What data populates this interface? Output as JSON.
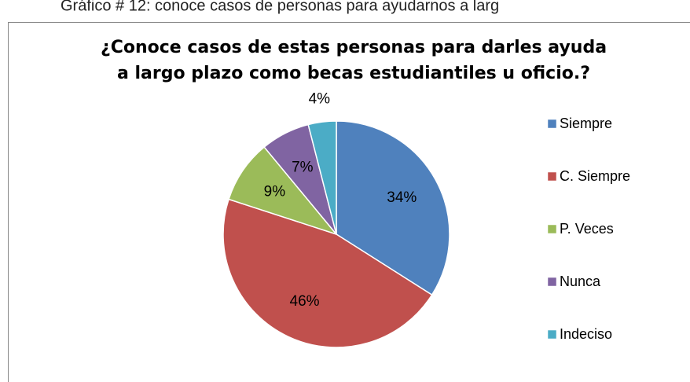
{
  "caption": "Gráfico # 12: conoce casos de personas para ayudarnos a larg",
  "chart_data": {
    "type": "pie",
    "title": [
      "¿Conoce casos de estas personas para darles ayuda",
      "a largo plazo como becas estudiantiles u oficio.?"
    ],
    "categories": [
      "Siempre",
      "C. Siempre",
      "P. Veces",
      "Nunca",
      "Indeciso"
    ],
    "values": [
      34,
      46,
      9,
      7,
      4
    ],
    "value_labels": [
      "34%",
      "46%",
      "9%",
      "7%",
      "4%"
    ],
    "colors": [
      "#4f81bd",
      "#c0504d",
      "#9bbb59",
      "#8064a2",
      "#4bacc6"
    ],
    "legend": "right"
  }
}
